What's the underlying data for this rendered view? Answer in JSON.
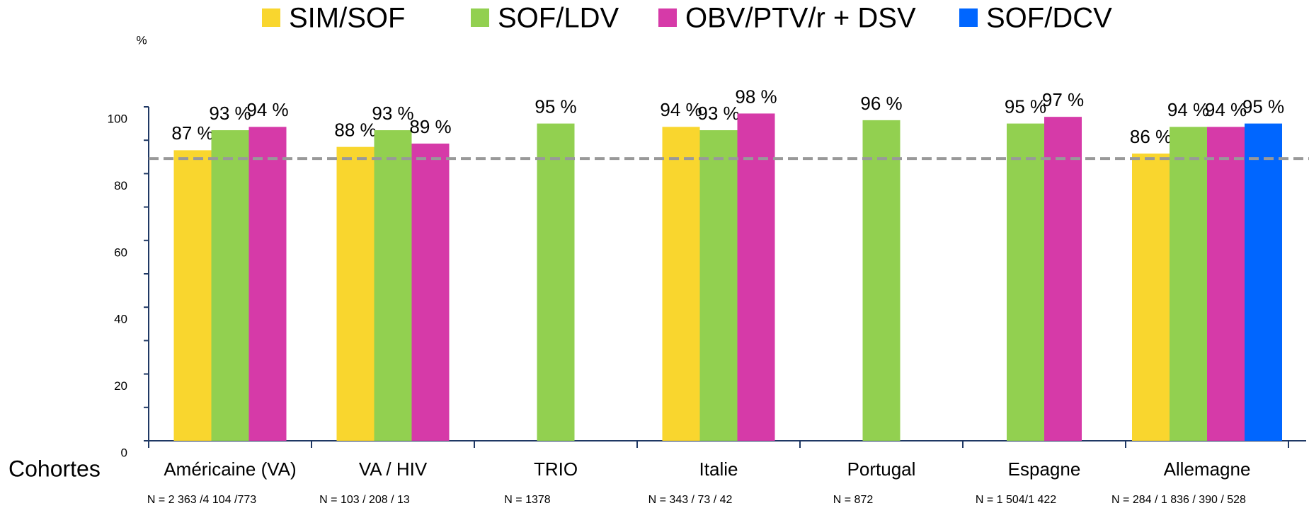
{
  "chart_data": {
    "type": "bar",
    "y_unit": "%",
    "x_label": "Cohortes",
    "categories": [
      "Américaine (VA)",
      "VA / HIV",
      "TRIO",
      "Italie",
      "Portugal",
      "Espagne",
      "Allemagne"
    ],
    "category_notes": [
      "N = 2 363 /4 104 /773",
      "N = 103 / 208 / 13",
      "N = 1378",
      "N =  343 / 73 / 42",
      "N = 872",
      "N = 1 504/1 422",
      "N = 284 / 1 836 / 390 / 528"
    ],
    "series": [
      {
        "name": "SIM/SOF",
        "color": "#f9d62e",
        "values": [
          87,
          88,
          null,
          94,
          null,
          null,
          86
        ],
        "value_labels": [
          "87 %",
          "88 %",
          null,
          "94 %",
          null,
          null,
          "86 %"
        ]
      },
      {
        "name": "SOF/LDV",
        "color": "#92d050",
        "values": [
          93,
          93,
          95,
          93,
          96,
          95,
          94
        ],
        "value_labels": [
          "93 %",
          "93 %",
          "95 %",
          "93 %",
          "96 %",
          "95 %",
          "94 %"
        ]
      },
      {
        "name": "OBV/PTV/r + DSV",
        "color": "#d63aa8",
        "values": [
          94,
          89,
          null,
          98,
          null,
          97,
          94
        ],
        "value_labels": [
          "94 %",
          "89 %",
          null,
          "98 %",
          null,
          "97 %",
          "94 %"
        ]
      },
      {
        "name": "SOF/DCV",
        "color": "#0066ff",
        "values": [
          null,
          null,
          null,
          null,
          null,
          null,
          95
        ],
        "value_labels": [
          null,
          null,
          null,
          null,
          null,
          null,
          "95 %"
        ]
      }
    ],
    "ylim": [
      0,
      100
    ],
    "yticks": [
      0,
      20,
      40,
      60,
      80,
      100
    ],
    "minor_yticks": [
      10,
      30,
      50,
      70,
      90
    ],
    "reference_line": 84.5,
    "reference_color": "#999999"
  }
}
